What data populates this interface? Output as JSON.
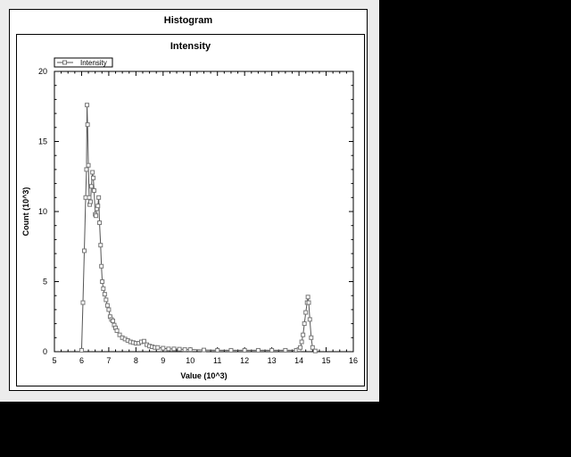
{
  "window": {
    "title": "Histogram"
  },
  "chart_data": {
    "type": "line",
    "title": "Intensity",
    "xlabel": "Value (10^3)",
    "ylabel": "Count (10^3)",
    "xlim": [
      5,
      16
    ],
    "ylim": [
      0,
      20
    ],
    "xticks": [
      5,
      6,
      7,
      8,
      9,
      10,
      11,
      12,
      13,
      14,
      15,
      16
    ],
    "yticks": [
      0,
      5,
      10,
      15,
      20
    ],
    "legend": {
      "placement": "top-left"
    },
    "grid": false,
    "colors": {
      "line": "#555555",
      "marker": "#777777"
    },
    "series": [
      {
        "name": "Intensity",
        "marker": "square",
        "x": [
          6.0,
          6.05,
          6.1,
          6.15,
          6.18,
          6.2,
          6.22,
          6.25,
          6.28,
          6.3,
          6.33,
          6.36,
          6.4,
          6.43,
          6.46,
          6.5,
          6.53,
          6.56,
          6.6,
          6.63,
          6.66,
          6.7,
          6.73,
          6.76,
          6.8,
          6.85,
          6.9,
          6.95,
          7.0,
          7.05,
          7.1,
          7.15,
          7.2,
          7.25,
          7.3,
          7.4,
          7.5,
          7.6,
          7.7,
          7.8,
          7.9,
          8.0,
          8.1,
          8.2,
          8.3,
          8.4,
          8.5,
          8.6,
          8.7,
          8.8,
          9.0,
          9.2,
          9.4,
          9.6,
          9.8,
          10.0,
          10.5,
          11.0,
          11.5,
          12.0,
          12.5,
          13.0,
          13.5,
          13.9,
          14.0,
          14.05,
          14.1,
          14.15,
          14.2,
          14.25,
          14.3,
          14.33,
          14.36,
          14.4,
          14.45,
          14.5,
          14.6
        ],
        "y": [
          0.1,
          3.5,
          7.2,
          11.0,
          13.0,
          17.6,
          16.2,
          13.3,
          11.0,
          10.5,
          10.7,
          11.8,
          12.8,
          12.4,
          11.5,
          9.8,
          9.7,
          10.2,
          10.4,
          11.0,
          9.2,
          7.6,
          6.1,
          5.0,
          4.5,
          4.1,
          3.7,
          3.3,
          3.0,
          2.5,
          2.3,
          2.2,
          1.9,
          1.7,
          1.5,
          1.2,
          1.0,
          0.9,
          0.8,
          0.7,
          0.65,
          0.6,
          0.6,
          0.7,
          0.75,
          0.5,
          0.4,
          0.35,
          0.3,
          0.3,
          0.25,
          0.2,
          0.2,
          0.18,
          0.15,
          0.15,
          0.12,
          0.1,
          0.1,
          0.1,
          0.1,
          0.1,
          0.1,
          0.1,
          0.15,
          0.3,
          0.7,
          1.2,
          2.0,
          2.8,
          3.5,
          3.9,
          3.5,
          2.3,
          1.0,
          0.3,
          0.05
        ]
      }
    ]
  }
}
